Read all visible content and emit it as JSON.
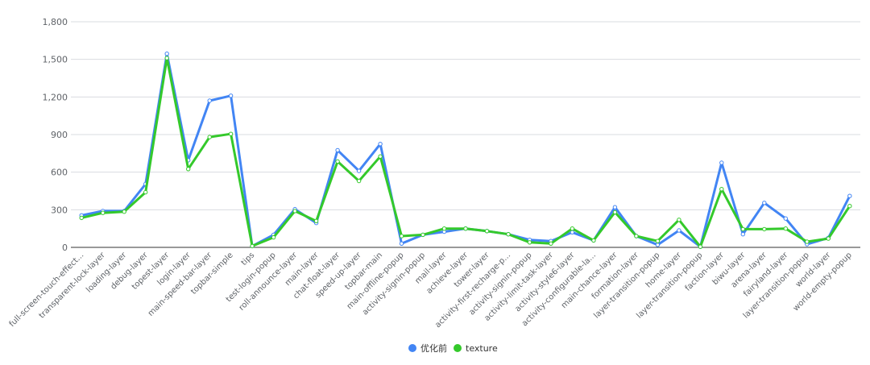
{
  "chart_data": {
    "type": "line",
    "title": "",
    "xlabel": "",
    "ylabel": "",
    "ylim": [
      0,
      1800
    ],
    "yticks": [
      "0",
      "300",
      "600",
      "900",
      "1,200",
      "1,500",
      "1,800"
    ],
    "yticks_values": [
      0,
      300,
      600,
      900,
      1200,
      1500,
      1800
    ],
    "grid": true,
    "legend_position": "bottom",
    "categories": [
      "full-screen-touch-effect...",
      "transparent-lock-layer",
      "loading-layer",
      "debug-layer",
      "topest-layer",
      "login-layer",
      "main-speed-bar-layer",
      "topbar-simple",
      "tips",
      "test-login-popup",
      "roll-announce-layer",
      "main-layer",
      "chat-float-layer",
      "speed-up-layer",
      "topbar-main",
      "main-offline-popup",
      "activity-signin-popup",
      "mail-layer",
      "achieve-layer",
      "tower-layer",
      "activity-first-recharge-p...",
      "activity-signin-popup",
      "activity-limit-task-layer",
      "activity-style6-layer",
      "activity-configurable-la...",
      "main-chance-layer",
      "formation-layer",
      "layer-transition-popup",
      "home-layer",
      "layer-transition-popup",
      "faction-layer",
      "biwu-layer",
      "arena-layer",
      "fairyland-layer",
      "layer-transition-popup",
      "world-layer",
      "world-empty-popup"
    ],
    "series": [
      {
        "name": "优化前",
        "color": "#4285f4",
        "values": [
          255,
          290,
          290,
          505,
          1545,
          695,
          1170,
          1210,
          10,
          100,
          305,
          195,
          775,
          610,
          825,
          30,
          100,
          125,
          150,
          130,
          105,
          60,
          50,
          120,
          55,
          320,
          90,
          20,
          135,
          5,
          675,
          105,
          355,
          230,
          25,
          75,
          410
        ]
      },
      {
        "name": "texture",
        "color": "#34c92b",
        "values": [
          235,
          275,
          285,
          440,
          1510,
          625,
          880,
          905,
          10,
          80,
          290,
          210,
          685,
          530,
          725,
          90,
          100,
          150,
          150,
          130,
          105,
          40,
          30,
          150,
          55,
          280,
          90,
          50,
          220,
          5,
          465,
          145,
          145,
          150,
          45,
          70,
          330
        ]
      }
    ]
  }
}
